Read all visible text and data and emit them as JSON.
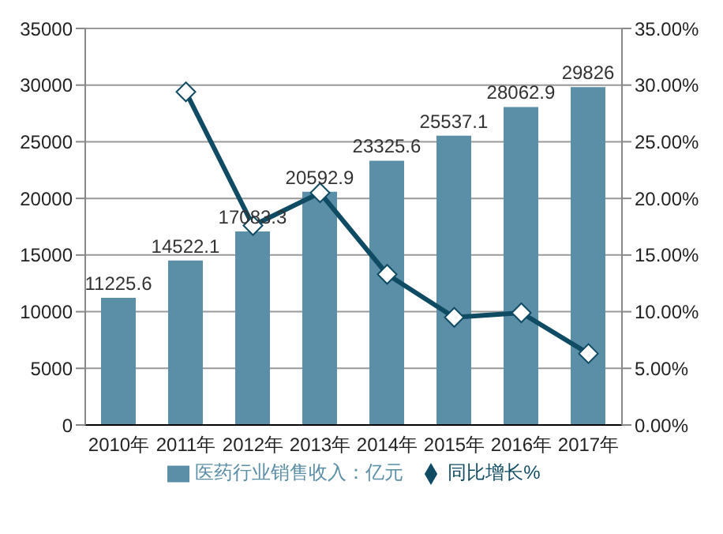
{
  "chart_data": {
    "type": "bar",
    "categories": [
      "2010年",
      "2011年",
      "2012年",
      "2013年",
      "2014年",
      "2015年",
      "2016年",
      "2017年"
    ],
    "series": [
      {
        "name": "医药行业销售收入：亿元",
        "color": "#5b8fa8",
        "values": [
          11225.6,
          14522.1,
          17083.3,
          20592.9,
          23325.6,
          25537.1,
          28062.9,
          29826
        ],
        "value_labels": [
          "11225.6",
          "14522.1",
          "17083.3",
          "20592.9",
          "23325.6",
          "25537.1",
          "28062.9",
          "29826"
        ]
      },
      {
        "name": "同比增长%",
        "type": "line",
        "axis": "y2",
        "color": "#0f4c63",
        "marker": "diamond",
        "values": [
          null,
          29.4,
          17.6,
          20.5,
          13.3,
          9.5,
          9.9,
          6.3
        ]
      }
    ],
    "ylim": [
      0,
      35000
    ],
    "yticks": [
      0,
      5000,
      10000,
      15000,
      20000,
      25000,
      30000,
      35000
    ],
    "y2lim": [
      0,
      35
    ],
    "y2ticks": [
      {
        "value": 0,
        "label": "0.00%"
      },
      {
        "value": 5,
        "label": "5.00%"
      },
      {
        "value": 10,
        "label": "10.00%"
      },
      {
        "value": 15,
        "label": "15.00%"
      },
      {
        "value": 20,
        "label": "20.00%"
      },
      {
        "value": 25,
        "label": "25.00%"
      },
      {
        "value": 30,
        "label": "30.00%"
      },
      {
        "value": 35,
        "label": "35.00%"
      }
    ],
    "grid": "y",
    "legend": "bottom"
  }
}
